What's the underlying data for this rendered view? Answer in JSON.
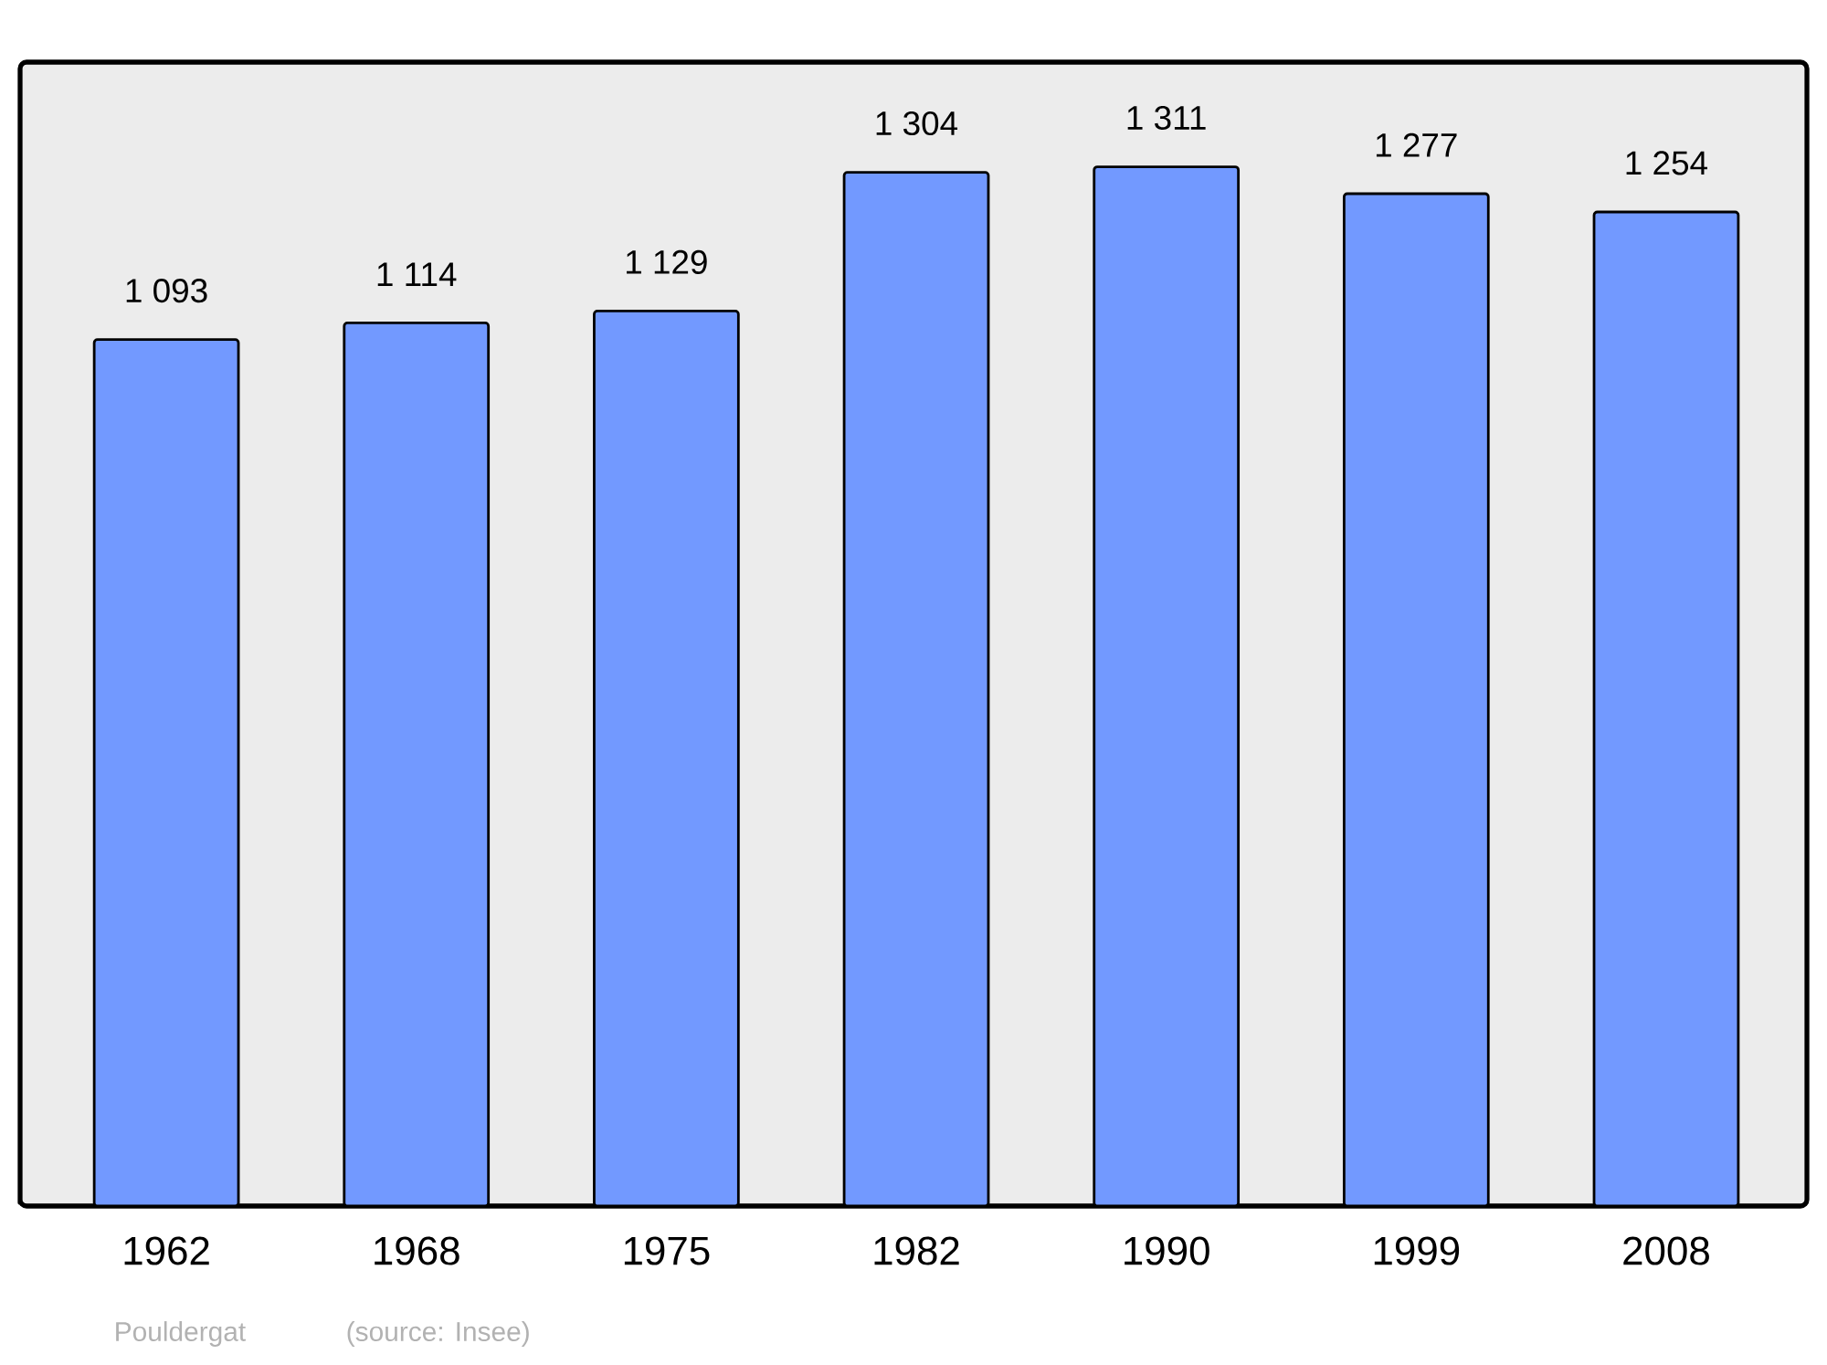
{
  "chart_data": {
    "type": "bar",
    "categories": [
      "1962",
      "1968",
      "1975",
      "1982",
      "1990",
      "1999",
      "2008"
    ],
    "values": [
      1093,
      1114,
      1129,
      1304,
      1311,
      1277,
      1254
    ],
    "value_labels": [
      "1 093",
      "1 114",
      "1 129",
      "1 304",
      "1 311",
      "1 277",
      "1 254"
    ],
    "color": "#7299ff",
    "ylim": [
      0,
      1443
    ],
    "tick_labels": "x",
    "annotations": [
      "Pouldergat",
      "(source: Insee)"
    ]
  }
}
